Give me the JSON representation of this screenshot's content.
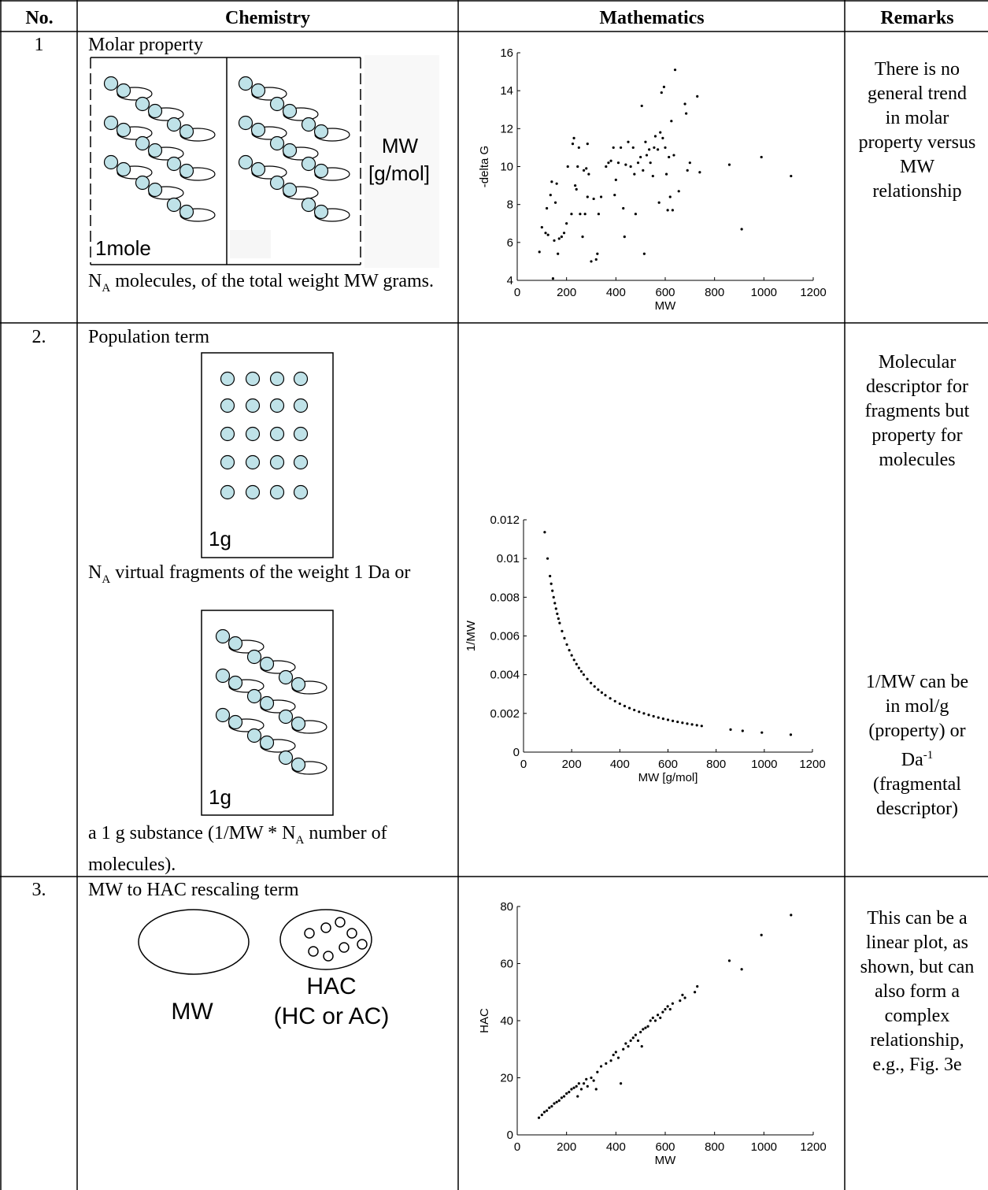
{
  "table": {
    "header": [
      "No.",
      "Chemistry",
      "Mathematics",
      "Remarks"
    ],
    "rows": [
      {
        "no": "1",
        "title": "Molar property",
        "figure_labels": [
          "MW",
          "[g/mol]",
          "1mole"
        ],
        "caption": [
          "N",
          "A",
          " molecules, of the total weight MW grams."
        ],
        "remarks": [
          "There is no",
          "general trend",
          "in molar",
          "property versus",
          "MW",
          "relationship"
        ]
      },
      {
        "no": "2.",
        "title": "Population term",
        "figure_labels": [
          "1g",
          "1g"
        ],
        "caption": [
          "N",
          "A",
          " virtual fragments of the weight 1 Da or"
        ],
        "caption_2": [
          "a 1 g substance (1/MW * N",
          "A",
          " number of molecules)."
        ],
        "remarks": [
          "Molecular",
          "descriptor for",
          "fragments but",
          "property for",
          "molecules"
        ],
        "remarks_2": [
          "1/MW can be",
          "in mol/g",
          "(property) or",
          [
            "Da",
            "-1"
          ],
          "(fragmental",
          "descriptor)"
        ]
      },
      {
        "no": "3.",
        "title": "MW to HAC rescaling term",
        "figure_labels": [
          "MW",
          "HAC",
          "(HC or AC)"
        ],
        "remarks": [
          "This can be a",
          "linear plot, as",
          "shown, but can",
          "also form a",
          "complex",
          "relationship,",
          "e.g., Fig. 3e"
        ]
      }
    ]
  },
  "chart_data": [
    {
      "type": "scatter",
      "xlabel": "MW",
      "ylabel": "-delta G",
      "color": "#000000",
      "xlim": [
        0,
        1200
      ],
      "xticks": [
        0,
        200,
        400,
        600,
        800,
        1000,
        1200
      ],
      "ylim": [
        4,
        16
      ],
      "yticks": [
        4,
        6,
        8,
        10,
        12,
        14,
        16
      ],
      "x": [
        90,
        100,
        115,
        120,
        125,
        135,
        140,
        145,
        150,
        155,
        160,
        165,
        170,
        180,
        190,
        200,
        205,
        220,
        225,
        230,
        235,
        240,
        245,
        250,
        255,
        265,
        270,
        275,
        280,
        285,
        285,
        290,
        300,
        310,
        320,
        325,
        330,
        340,
        360,
        370,
        380,
        390,
        395,
        400,
        410,
        420,
        430,
        435,
        440,
        450,
        460,
        470,
        475,
        480,
        490,
        500,
        505,
        510,
        515,
        520,
        525,
        535,
        540,
        550,
        555,
        560,
        570,
        575,
        580,
        585,
        590,
        595,
        600,
        605,
        610,
        615,
        620,
        625,
        630,
        635,
        640,
        655,
        680,
        685,
        690,
        700,
        730,
        740,
        860,
        910,
        990,
        1110
      ],
      "values": [
        5.5,
        6.8,
        6.5,
        7.8,
        6.4,
        8.5,
        9.2,
        4.1,
        6.1,
        8.1,
        9.1,
        5.4,
        6.2,
        6.3,
        6.5,
        7.0,
        10.0,
        7.5,
        11.2,
        11.5,
        9.0,
        8.8,
        10.0,
        11.0,
        7.5,
        6.3,
        9.8,
        7.5,
        9.9,
        11.2,
        8.4,
        9.6,
        5.0,
        8.3,
        5.1,
        5.4,
        7.5,
        8.4,
        10.0,
        10.2,
        10.3,
        11.0,
        8.5,
        9.3,
        10.2,
        11.0,
        7.8,
        6.3,
        10.1,
        11.3,
        10.0,
        11.0,
        9.6,
        7.5,
        10.2,
        10.5,
        13.2,
        9.8,
        5.4,
        11.3,
        10.6,
        10.9,
        10.2,
        9.5,
        11.0,
        11.6,
        10.9,
        8.1,
        11.8,
        13.9,
        11.5,
        14.2,
        11.0,
        9.6,
        7.7,
        10.5,
        8.4,
        12.4,
        7.7,
        10.6,
        15.1,
        8.7,
        13.3,
        12.8,
        9.8,
        10.2,
        13.7,
        9.7,
        10.1,
        6.7,
        10.5,
        9.5
      ]
    },
    {
      "type": "scatter",
      "xlabel": "MW [g/mol]",
      "ylabel": "1/MW",
      "color": "#000000",
      "xlim": [
        0,
        1200
      ],
      "xticks": [
        0,
        200,
        400,
        600,
        800,
        1000,
        1200
      ],
      "ylim": [
        0,
        0.012
      ],
      "yticks": [
        0,
        0.002,
        0.004,
        0.006,
        0.008,
        0.01,
        0.012
      ],
      "x": [
        88,
        100,
        110,
        115,
        120,
        125,
        130,
        135,
        140,
        145,
        150,
        160,
        170,
        180,
        190,
        200,
        210,
        220,
        230,
        240,
        250,
        265,
        280,
        295,
        310,
        325,
        340,
        360,
        380,
        400,
        420,
        440,
        460,
        480,
        500,
        520,
        540,
        560,
        580,
        600,
        620,
        640,
        660,
        680,
        700,
        720,
        740,
        860,
        910,
        990,
        1110
      ],
      "values": [
        0.01136,
        0.01,
        0.009091,
        0.008696,
        0.008333,
        0.008,
        0.007692,
        0.007407,
        0.007143,
        0.006897,
        0.006667,
        0.00625,
        0.005882,
        0.005556,
        0.005263,
        0.005,
        0.004762,
        0.004545,
        0.004348,
        0.004167,
        0.004,
        0.003774,
        0.003571,
        0.00339,
        0.003226,
        0.003077,
        0.002941,
        0.002778,
        0.002632,
        0.0025,
        0.002381,
        0.002273,
        0.002174,
        0.002083,
        0.002,
        0.001923,
        0.001852,
        0.001786,
        0.001724,
        0.001667,
        0.001613,
        0.001563,
        0.001515,
        0.001471,
        0.001429,
        0.001389,
        0.001351,
        0.001163,
        0.001099,
        0.00101,
        0.0009009
      ]
    },
    {
      "type": "scatter",
      "xlabel": "MW",
      "ylabel": "HAC",
      "color": "#000000",
      "xlim": [
        0,
        1200
      ],
      "xticks": [
        0,
        200,
        400,
        600,
        800,
        1000,
        1200
      ],
      "ylim": [
        0,
        80
      ],
      "yticks": [
        0,
        20,
        40,
        60,
        80
      ],
      "x": [
        88,
        100,
        110,
        120,
        130,
        140,
        150,
        160,
        170,
        180,
        190,
        200,
        210,
        220,
        230,
        240,
        245,
        250,
        260,
        270,
        280,
        285,
        300,
        310,
        320,
        325,
        340,
        360,
        380,
        390,
        400,
        410,
        420,
        430,
        440,
        450,
        460,
        470,
        480,
        490,
        500,
        505,
        510,
        520,
        530,
        540,
        550,
        560,
        570,
        580,
        590,
        600,
        610,
        620,
        630,
        660,
        670,
        680,
        720,
        730,
        860,
        910,
        990,
        1110
      ],
      "values": [
        6,
        7,
        8,
        8.5,
        9.5,
        10,
        11,
        11.5,
        12,
        13,
        13.5,
        14.5,
        15,
        16,
        16.5,
        17,
        13.5,
        18,
        16,
        18,
        19.5,
        17,
        20,
        19,
        16,
        22,
        24,
        25,
        26,
        28,
        29,
        27,
        18,
        30,
        32,
        31,
        33,
        34,
        35,
        33,
        36,
        31,
        37,
        37.5,
        38,
        40,
        41,
        40,
        42,
        41,
        43,
        44,
        45,
        44,
        46,
        47,
        49,
        48,
        50,
        52,
        61,
        58,
        70,
        77
      ]
    }
  ]
}
